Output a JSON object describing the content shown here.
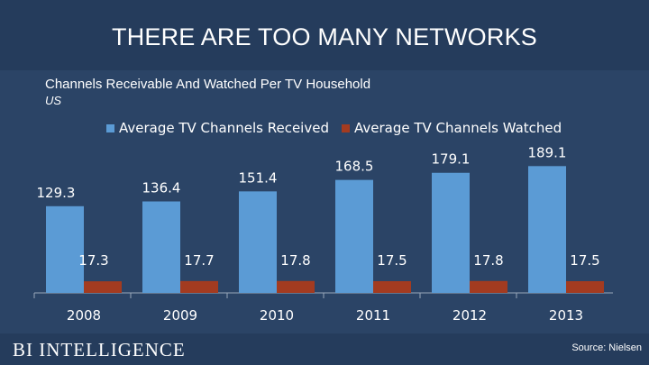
{
  "header": {
    "title": "THERE ARE TOO MANY NETWORKS"
  },
  "chart_data": {
    "type": "bar",
    "title": "Channels Receivable And Watched Per TV Household",
    "subtitle": "US",
    "categories": [
      "2008",
      "2009",
      "2010",
      "2011",
      "2012",
      "2013"
    ],
    "series": [
      {
        "name": "Average TV Channels Received",
        "color": "#5b9bd5",
        "values": [
          129.3,
          136.4,
          151.4,
          168.5,
          179.1,
          189.1
        ]
      },
      {
        "name": "Average TV Channels Watched",
        "color": "#a33b20",
        "values": [
          17.3,
          17.7,
          17.8,
          17.5,
          17.8,
          17.5
        ]
      }
    ],
    "data_labels": [
      "129.3",
      "136.4",
      "151.4",
      "168.5",
      "179.1",
      "189.1"
    ],
    "watched_labels": [
      "17.3",
      "17.7",
      "17.8",
      "17.5",
      "17.8",
      "17.5"
    ],
    "legend_position": "top",
    "grid": false,
    "ylim": [
      0,
      200
    ]
  },
  "footer": {
    "brand": "BI INTELLIGENCE",
    "source": "Source: Nielsen"
  }
}
